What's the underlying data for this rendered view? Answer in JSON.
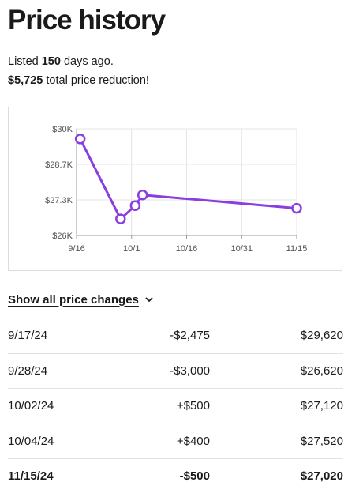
{
  "header": {
    "title": "Price history"
  },
  "summary": {
    "listed_prefix": "Listed ",
    "listed_days": "150",
    "listed_suffix": " days ago.",
    "reduction_amount": "$5,725",
    "reduction_suffix": " total price reduction!"
  },
  "colors": {
    "accent": "#8a3ee0",
    "grid": "#e4e4e4",
    "text": "#1a1a1a"
  },
  "chart_data": {
    "type": "line",
    "title": "",
    "xlabel": "",
    "ylabel": "",
    "x_tick_labels": [
      "9/16",
      "10/1",
      "10/16",
      "10/31",
      "11/15"
    ],
    "y_tick_labels": [
      "$30K",
      "$28.7K",
      "$27.3K",
      "$26K"
    ],
    "ylim": [
      26000,
      30000
    ],
    "xlim": [
      "2024-09-16",
      "2024-11-15"
    ],
    "grid": true,
    "series": [
      {
        "x": [
          "2024-09-17",
          "2024-09-28",
          "2024-10-02",
          "2024-10-04",
          "2024-11-15"
        ],
        "values": [
          29620,
          26620,
          27120,
          27520,
          27020
        ]
      }
    ]
  },
  "show_all": {
    "label": "Show all price changes",
    "icon": "chevron-down-icon"
  },
  "price_changes": [
    {
      "date": "9/17/24",
      "change": "-$2,475",
      "price": "$29,620"
    },
    {
      "date": "9/28/24",
      "change": "-$3,000",
      "price": "$26,620"
    },
    {
      "date": "10/02/24",
      "change": "+$500",
      "price": "$27,120"
    },
    {
      "date": "10/04/24",
      "change": "+$400",
      "price": "$27,520"
    },
    {
      "date": "11/15/24",
      "change": "-$500",
      "price": "$27,020"
    }
  ]
}
